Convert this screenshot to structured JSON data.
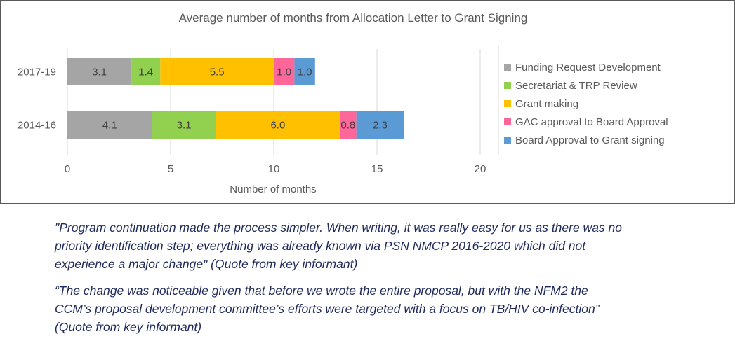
{
  "chart_data": {
    "type": "bar",
    "orientation": "horizontal",
    "stacked": true,
    "title": "Average number of months from Allocation Letter to Grant Signing",
    "xlabel": "Number of months",
    "ylabel": "",
    "xlim": [
      0,
      20
    ],
    "x_ticks": [
      "0",
      "5",
      "10",
      "15",
      "20"
    ],
    "grid": "vertical",
    "legend_position": "right",
    "categories": [
      "2017-19",
      "2014-16"
    ],
    "series": [
      {
        "name": "Funding Request Development",
        "color": "#a5a5a5",
        "values": [
          3.1,
          4.1
        ],
        "labels": [
          "3.1",
          "4.1"
        ]
      },
      {
        "name": "Secretariat & TRP Review",
        "color": "#92d050",
        "values": [
          1.4,
          3.1
        ],
        "labels": [
          "1.4",
          "3.1"
        ]
      },
      {
        "name": "Grant making",
        "color": "#ffc000",
        "values": [
          5.5,
          6.0
        ],
        "labels": [
          "5.5",
          "6.0"
        ]
      },
      {
        "name": "GAC approval to Board Approval",
        "color": "#ff6699",
        "values": [
          1.0,
          0.8
        ],
        "labels": [
          "1.0",
          "0.8"
        ]
      },
      {
        "name": "Board Approval to Grant signing",
        "color": "#5b9bd5",
        "values": [
          1.0,
          2.3
        ],
        "labels": [
          "1.0",
          "2.3"
        ]
      }
    ]
  },
  "quotes": [
    "\"Program continuation  made the process simpler. When writing, it was really easy for us as there was no\npriority identification  step; everything was already known via PSN NMCP 2016-2020 which did not\nexperience a major change\" (Quote from key informant)",
    "“The change was noticeable given that before we wrote the entire proposal,  but with the NFM2 the\nCCM’s proposal development committee’s efforts were targeted with a focus on TB/HIV co-infection”\n(Quote from key informant)"
  ]
}
